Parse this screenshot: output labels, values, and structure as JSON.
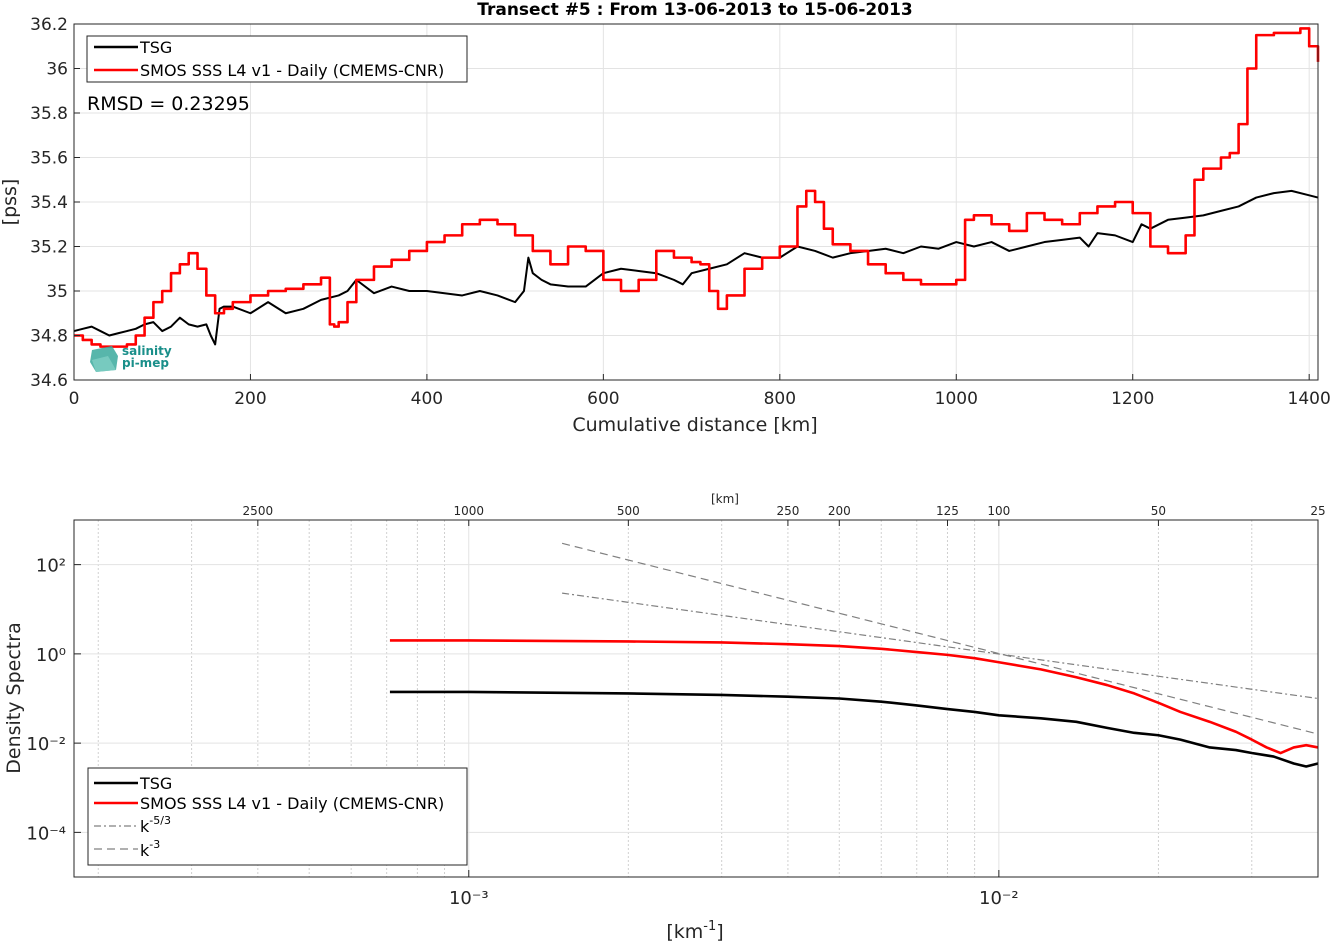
{
  "colors": {
    "tsg": "#000000",
    "smos": "#ff0000",
    "ref": "#808080",
    "grid": "#e3e3e3",
    "logo": "#1a8f8a"
  },
  "logo": {
    "line1": "salinity",
    "line2": "pi-mep"
  },
  "chart_data": [
    {
      "type": "line",
      "title": "Transect #5 : From 13-06-2013 to 15-06-2013",
      "xlabel": "Cumulative distance [km]",
      "ylabel": "[pss]",
      "xlim": [
        0,
        1410
      ],
      "ylim": [
        34.6,
        36.2
      ],
      "xticks": [
        "0",
        "200",
        "400",
        "600",
        "800",
        "1000",
        "1200",
        "1400"
      ],
      "yticks": [
        "34.6",
        "34.8",
        "35",
        "35.2",
        "35.4",
        "35.6",
        "35.8",
        "36",
        "36.2"
      ],
      "grid": true,
      "legend_position": "top-left",
      "annotation": "RMSD = 0.23295",
      "series": [
        {
          "name": "TSG",
          "x": [
            0,
            10,
            20,
            30,
            40,
            50,
            60,
            70,
            80,
            90,
            100,
            110,
            120,
            130,
            140,
            150,
            155,
            160,
            165,
            170,
            180,
            200,
            220,
            240,
            260,
            280,
            300,
            310,
            320,
            340,
            360,
            380,
            400,
            420,
            440,
            460,
            480,
            500,
            510,
            515,
            520,
            530,
            540,
            560,
            580,
            600,
            620,
            640,
            660,
            680,
            690,
            700,
            720,
            740,
            760,
            780,
            800,
            820,
            840,
            860,
            880,
            900,
            920,
            940,
            960,
            980,
            1000,
            1020,
            1040,
            1060,
            1080,
            1100,
            1120,
            1140,
            1150,
            1160,
            1180,
            1200,
            1210,
            1220,
            1240,
            1260,
            1280,
            1300,
            1320,
            1340,
            1360,
            1380,
            1400,
            1410
          ],
          "y": [
            34.82,
            34.83,
            34.84,
            34.82,
            34.8,
            34.81,
            34.82,
            34.83,
            34.85,
            34.86,
            34.82,
            34.84,
            34.88,
            34.85,
            34.84,
            34.85,
            34.8,
            34.76,
            34.92,
            34.93,
            34.93,
            34.9,
            34.95,
            34.9,
            34.92,
            34.96,
            34.98,
            35.0,
            35.05,
            34.99,
            35.02,
            35.0,
            35.0,
            34.99,
            34.98,
            35.0,
            34.98,
            34.95,
            35.0,
            35.15,
            35.08,
            35.05,
            35.03,
            35.02,
            35.02,
            35.08,
            35.1,
            35.09,
            35.08,
            35.05,
            35.03,
            35.08,
            35.1,
            35.12,
            35.17,
            35.15,
            35.15,
            35.2,
            35.18,
            35.15,
            35.17,
            35.18,
            35.19,
            35.17,
            35.2,
            35.19,
            35.22,
            35.2,
            35.22,
            35.18,
            35.2,
            35.22,
            35.23,
            35.24,
            35.2,
            35.26,
            35.25,
            35.22,
            35.3,
            35.28,
            35.32,
            35.33,
            35.34,
            35.36,
            35.38,
            35.42,
            35.44,
            35.45,
            35.43,
            35.42
          ]
        },
        {
          "name": "SMOS SSS L4 v1 - Daily (CMEMS-CNR)",
          "x": [
            0,
            10,
            20,
            30,
            40,
            50,
            60,
            70,
            80,
            90,
            100,
            110,
            120,
            130,
            140,
            150,
            160,
            170,
            180,
            200,
            220,
            240,
            260,
            280,
            290,
            295,
            300,
            310,
            320,
            340,
            360,
            380,
            400,
            420,
            440,
            460,
            480,
            500,
            520,
            540,
            560,
            580,
            600,
            620,
            640,
            660,
            680,
            700,
            710,
            720,
            730,
            740,
            760,
            780,
            800,
            820,
            830,
            840,
            850,
            860,
            880,
            900,
            920,
            940,
            960,
            980,
            1000,
            1010,
            1020,
            1040,
            1060,
            1080,
            1100,
            1120,
            1140,
            1160,
            1180,
            1200,
            1220,
            1240,
            1260,
            1270,
            1280,
            1300,
            1310,
            1320,
            1330,
            1340,
            1360,
            1380,
            1390,
            1400,
            1410
          ],
          "y": [
            34.8,
            34.78,
            34.76,
            34.75,
            34.75,
            34.75,
            34.76,
            34.8,
            34.88,
            34.95,
            35.0,
            35.08,
            35.12,
            35.17,
            35.1,
            34.98,
            34.9,
            34.92,
            34.95,
            34.98,
            35.0,
            35.01,
            35.03,
            35.06,
            34.85,
            34.84,
            34.86,
            34.95,
            35.05,
            35.11,
            35.14,
            35.18,
            35.22,
            35.25,
            35.3,
            35.32,
            35.3,
            35.25,
            35.18,
            35.12,
            35.2,
            35.18,
            35.05,
            35.0,
            35.05,
            35.18,
            35.15,
            35.13,
            35.12,
            35.0,
            34.92,
            34.98,
            35.1,
            35.15,
            35.2,
            35.38,
            35.45,
            35.4,
            35.28,
            35.21,
            35.18,
            35.12,
            35.08,
            35.05,
            35.03,
            35.03,
            35.05,
            35.32,
            35.34,
            35.3,
            35.27,
            35.35,
            35.32,
            35.3,
            35.35,
            35.38,
            35.4,
            35.35,
            35.2,
            35.17,
            35.25,
            35.5,
            35.55,
            35.6,
            35.62,
            35.75,
            36.0,
            36.15,
            36.16,
            36.16,
            36.18,
            36.1,
            36.03
          ]
        }
      ]
    },
    {
      "type": "line",
      "xlabel": "[km⁻¹]",
      "ylabel": "Density Spectra",
      "top_axis_label": "[km]",
      "xscale": "log",
      "yscale": "log",
      "xlim": [
        0.00018,
        0.04
      ],
      "ylim": [
        1e-05,
        1000
      ],
      "xticks": [
        0.001,
        0.01
      ],
      "xtick_labels": [
        "10⁻³",
        "10⁻²"
      ],
      "yticks": [
        0.0001,
        0.01,
        1,
        100
      ],
      "ytick_labels": [
        "10⁻⁴",
        "10⁻²",
        "10⁰",
        "10²"
      ],
      "top_ticks": [
        2500,
        1000,
        500,
        250,
        200,
        125,
        100,
        50,
        25
      ],
      "top_tick_labels": [
        "2500",
        "1000",
        "500",
        "250",
        "200",
        "125",
        "100",
        "50",
        "25"
      ],
      "grid": true,
      "legend_position": "bottom-left",
      "series": [
        {
          "name": "TSG",
          "x": [
            0.00071,
            0.001,
            0.002,
            0.003,
            0.004,
            0.005,
            0.006,
            0.007,
            0.008,
            0.009,
            0.01,
            0.012,
            0.014,
            0.016,
            0.018,
            0.02,
            0.022,
            0.025,
            0.028,
            0.03,
            0.033,
            0.036,
            0.038,
            0.04
          ],
          "y": [
            0.14,
            0.14,
            0.13,
            0.12,
            0.11,
            0.1,
            0.085,
            0.07,
            0.058,
            0.05,
            0.042,
            0.036,
            0.03,
            0.022,
            0.017,
            0.015,
            0.012,
            0.008,
            0.007,
            0.006,
            0.005,
            0.0035,
            0.003,
            0.0035
          ]
        },
        {
          "name": "SMOS SSS L4 v1 - Daily (CMEMS-CNR)",
          "x": [
            0.00071,
            0.001,
            0.002,
            0.003,
            0.004,
            0.005,
            0.006,
            0.007,
            0.008,
            0.009,
            0.01,
            0.012,
            0.014,
            0.016,
            0.018,
            0.02,
            0.022,
            0.025,
            0.028,
            0.03,
            0.032,
            0.034,
            0.036,
            0.038,
            0.04
          ],
          "y": [
            2.0,
            2.0,
            1.9,
            1.8,
            1.65,
            1.5,
            1.3,
            1.1,
            0.95,
            0.8,
            0.65,
            0.45,
            0.3,
            0.2,
            0.13,
            0.08,
            0.05,
            0.03,
            0.018,
            0.012,
            0.008,
            0.006,
            0.008,
            0.009,
            0.008
          ]
        },
        {
          "name": "k⁻⁵ᐟ³",
          "label_base": "k",
          "label_exp": "-5/3",
          "x": [
            0.0015,
            0.04
          ],
          "y": [
            23.0,
            0.1
          ]
        },
        {
          "name": "k⁻³",
          "label_base": "k",
          "label_exp": "-3",
          "x": [
            0.0015,
            0.04
          ],
          "y": [
            300.0,
            0.016
          ]
        }
      ]
    }
  ]
}
